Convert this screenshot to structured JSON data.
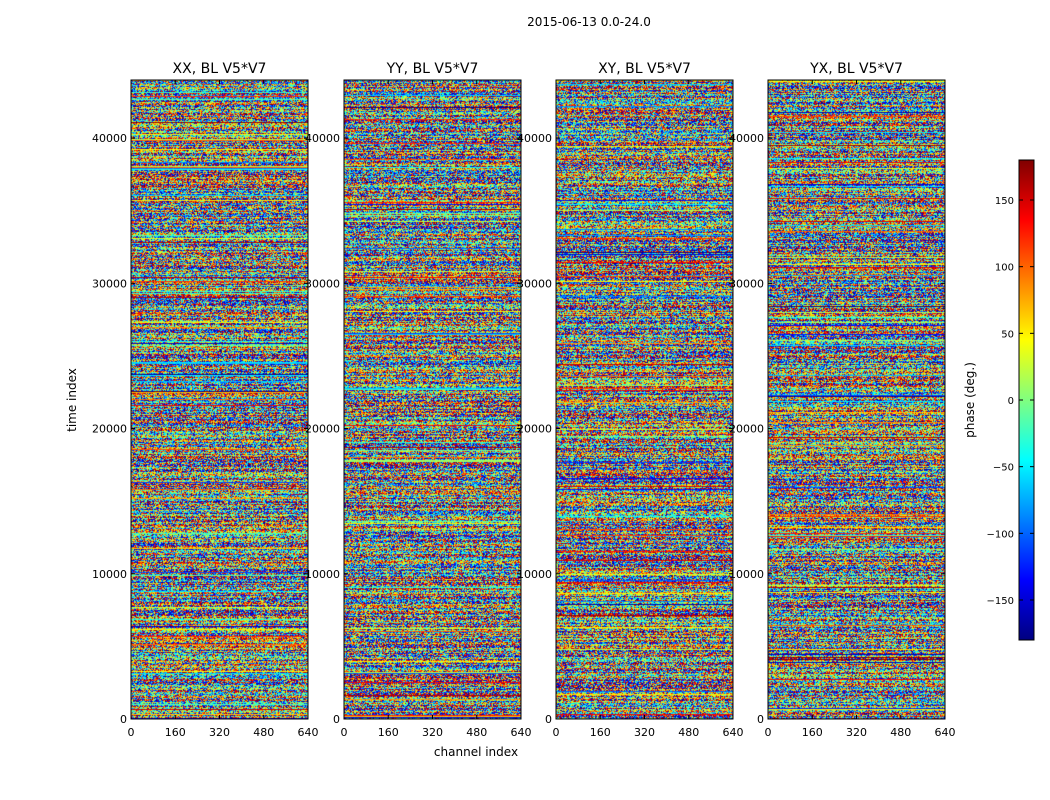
{
  "suptitle": "2015-06-13 0.0-24.0",
  "xlabel": "channel index",
  "ylabel": "time index",
  "colorbar": {
    "label": "phase (deg.)",
    "min": -180,
    "max": 180,
    "ticks": [
      150,
      100,
      50,
      0,
      -50,
      -100,
      -150
    ],
    "tick_labels": [
      "150",
      "100",
      "50",
      "0",
      "−50",
      "−100",
      "−150"
    ],
    "colormap": "jet",
    "stops": [
      "#000080",
      "#0000ff",
      "#0080ff",
      "#00ffff",
      "#80ff80",
      "#ffff00",
      "#ff8000",
      "#ff0000",
      "#800000"
    ]
  },
  "chart_data": [
    {
      "type": "heatmap",
      "title": "XX, BL V5*V7",
      "xlabel": "",
      "ylabel": "time index",
      "xlim": [
        0,
        640
      ],
      "ylim": [
        0,
        44000
      ],
      "xticks": [
        0,
        160,
        320,
        480,
        640
      ],
      "yticks": [
        0,
        10000,
        20000,
        30000,
        40000
      ],
      "value": "phase (deg.)",
      "value_range": [
        -180,
        180
      ]
    },
    {
      "type": "heatmap",
      "title": "YY, BL V5*V7",
      "xlabel": "channel index",
      "ylabel": "",
      "xlim": [
        0,
        640
      ],
      "ylim": [
        0,
        44000
      ],
      "xticks": [
        0,
        160,
        320,
        480,
        640
      ],
      "yticks": [
        0,
        10000,
        20000,
        30000,
        40000
      ],
      "value": "phase (deg.)",
      "value_range": [
        -180,
        180
      ]
    },
    {
      "type": "heatmap",
      "title": "XY, BL V5*V7",
      "xlabel": "",
      "ylabel": "",
      "xlim": [
        0,
        640
      ],
      "ylim": [
        0,
        44000
      ],
      "xticks": [
        0,
        160,
        320,
        480,
        640
      ],
      "yticks": [
        0,
        10000,
        20000,
        30000,
        40000
      ],
      "value": "phase (deg.)",
      "value_range": [
        -180,
        180
      ]
    },
    {
      "type": "heatmap",
      "title": "YX, BL V5*V7",
      "xlabel": "",
      "ylabel": "",
      "xlim": [
        0,
        640
      ],
      "ylim": [
        0,
        44000
      ],
      "xticks": [
        0,
        160,
        320,
        480,
        640
      ],
      "yticks": [
        0,
        10000,
        20000,
        30000,
        40000
      ],
      "value": "phase (deg.)",
      "value_range": [
        -180,
        180
      ]
    }
  ]
}
